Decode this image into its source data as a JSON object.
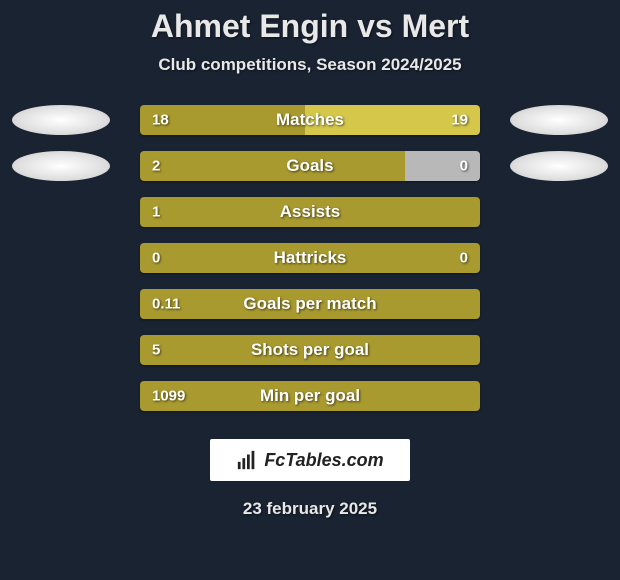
{
  "title": "Ahmet Engin vs Mert",
  "subtitle": "Club competitions, Season 2024/2025",
  "colors": {
    "player1": "#a89a2e",
    "player2": "#d4c74a",
    "background": "#1a2332",
    "oval": "#f0f0f0",
    "text": "#ffffff"
  },
  "rows": [
    {
      "label": "Matches",
      "left_val": "18",
      "right_val": "19",
      "split": 0.486,
      "left_color": "#a89a2e",
      "right_color": "#d4c74a",
      "show_ovals": true,
      "show_right_val": true
    },
    {
      "label": "Goals",
      "left_val": "2",
      "right_val": "0",
      "split": 1.0,
      "left_color": "#a89a2e",
      "right_color": "#d4c74a",
      "show_ovals": true,
      "show_right_val": true,
      "right_bg": "#b8b8b8",
      "right_bg_width": 0.22
    },
    {
      "label": "Assists",
      "left_val": "1",
      "right_val": "",
      "split": 1.0,
      "left_color": "#a89a2e",
      "right_color": "#a89a2e",
      "show_ovals": false,
      "show_right_val": false
    },
    {
      "label": "Hattricks",
      "left_val": "0",
      "right_val": "0",
      "split": 0.5,
      "left_color": "#a89a2e",
      "right_color": "#a89a2e",
      "show_ovals": false,
      "show_right_val": true
    },
    {
      "label": "Goals per match",
      "left_val": "0.11",
      "right_val": "",
      "split": 1.0,
      "left_color": "#a89a2e",
      "right_color": "#a89a2e",
      "show_ovals": false,
      "show_right_val": false
    },
    {
      "label": "Shots per goal",
      "left_val": "5",
      "right_val": "",
      "split": 1.0,
      "left_color": "#a89a2e",
      "right_color": "#a89a2e",
      "show_ovals": false,
      "show_right_val": false
    },
    {
      "label": "Min per goal",
      "left_val": "1099",
      "right_val": "",
      "split": 1.0,
      "left_color": "#a89a2e",
      "right_color": "#a89a2e",
      "show_ovals": false,
      "show_right_val": false
    }
  ],
  "branding": "FcTables.com",
  "date": "23 february 2025"
}
